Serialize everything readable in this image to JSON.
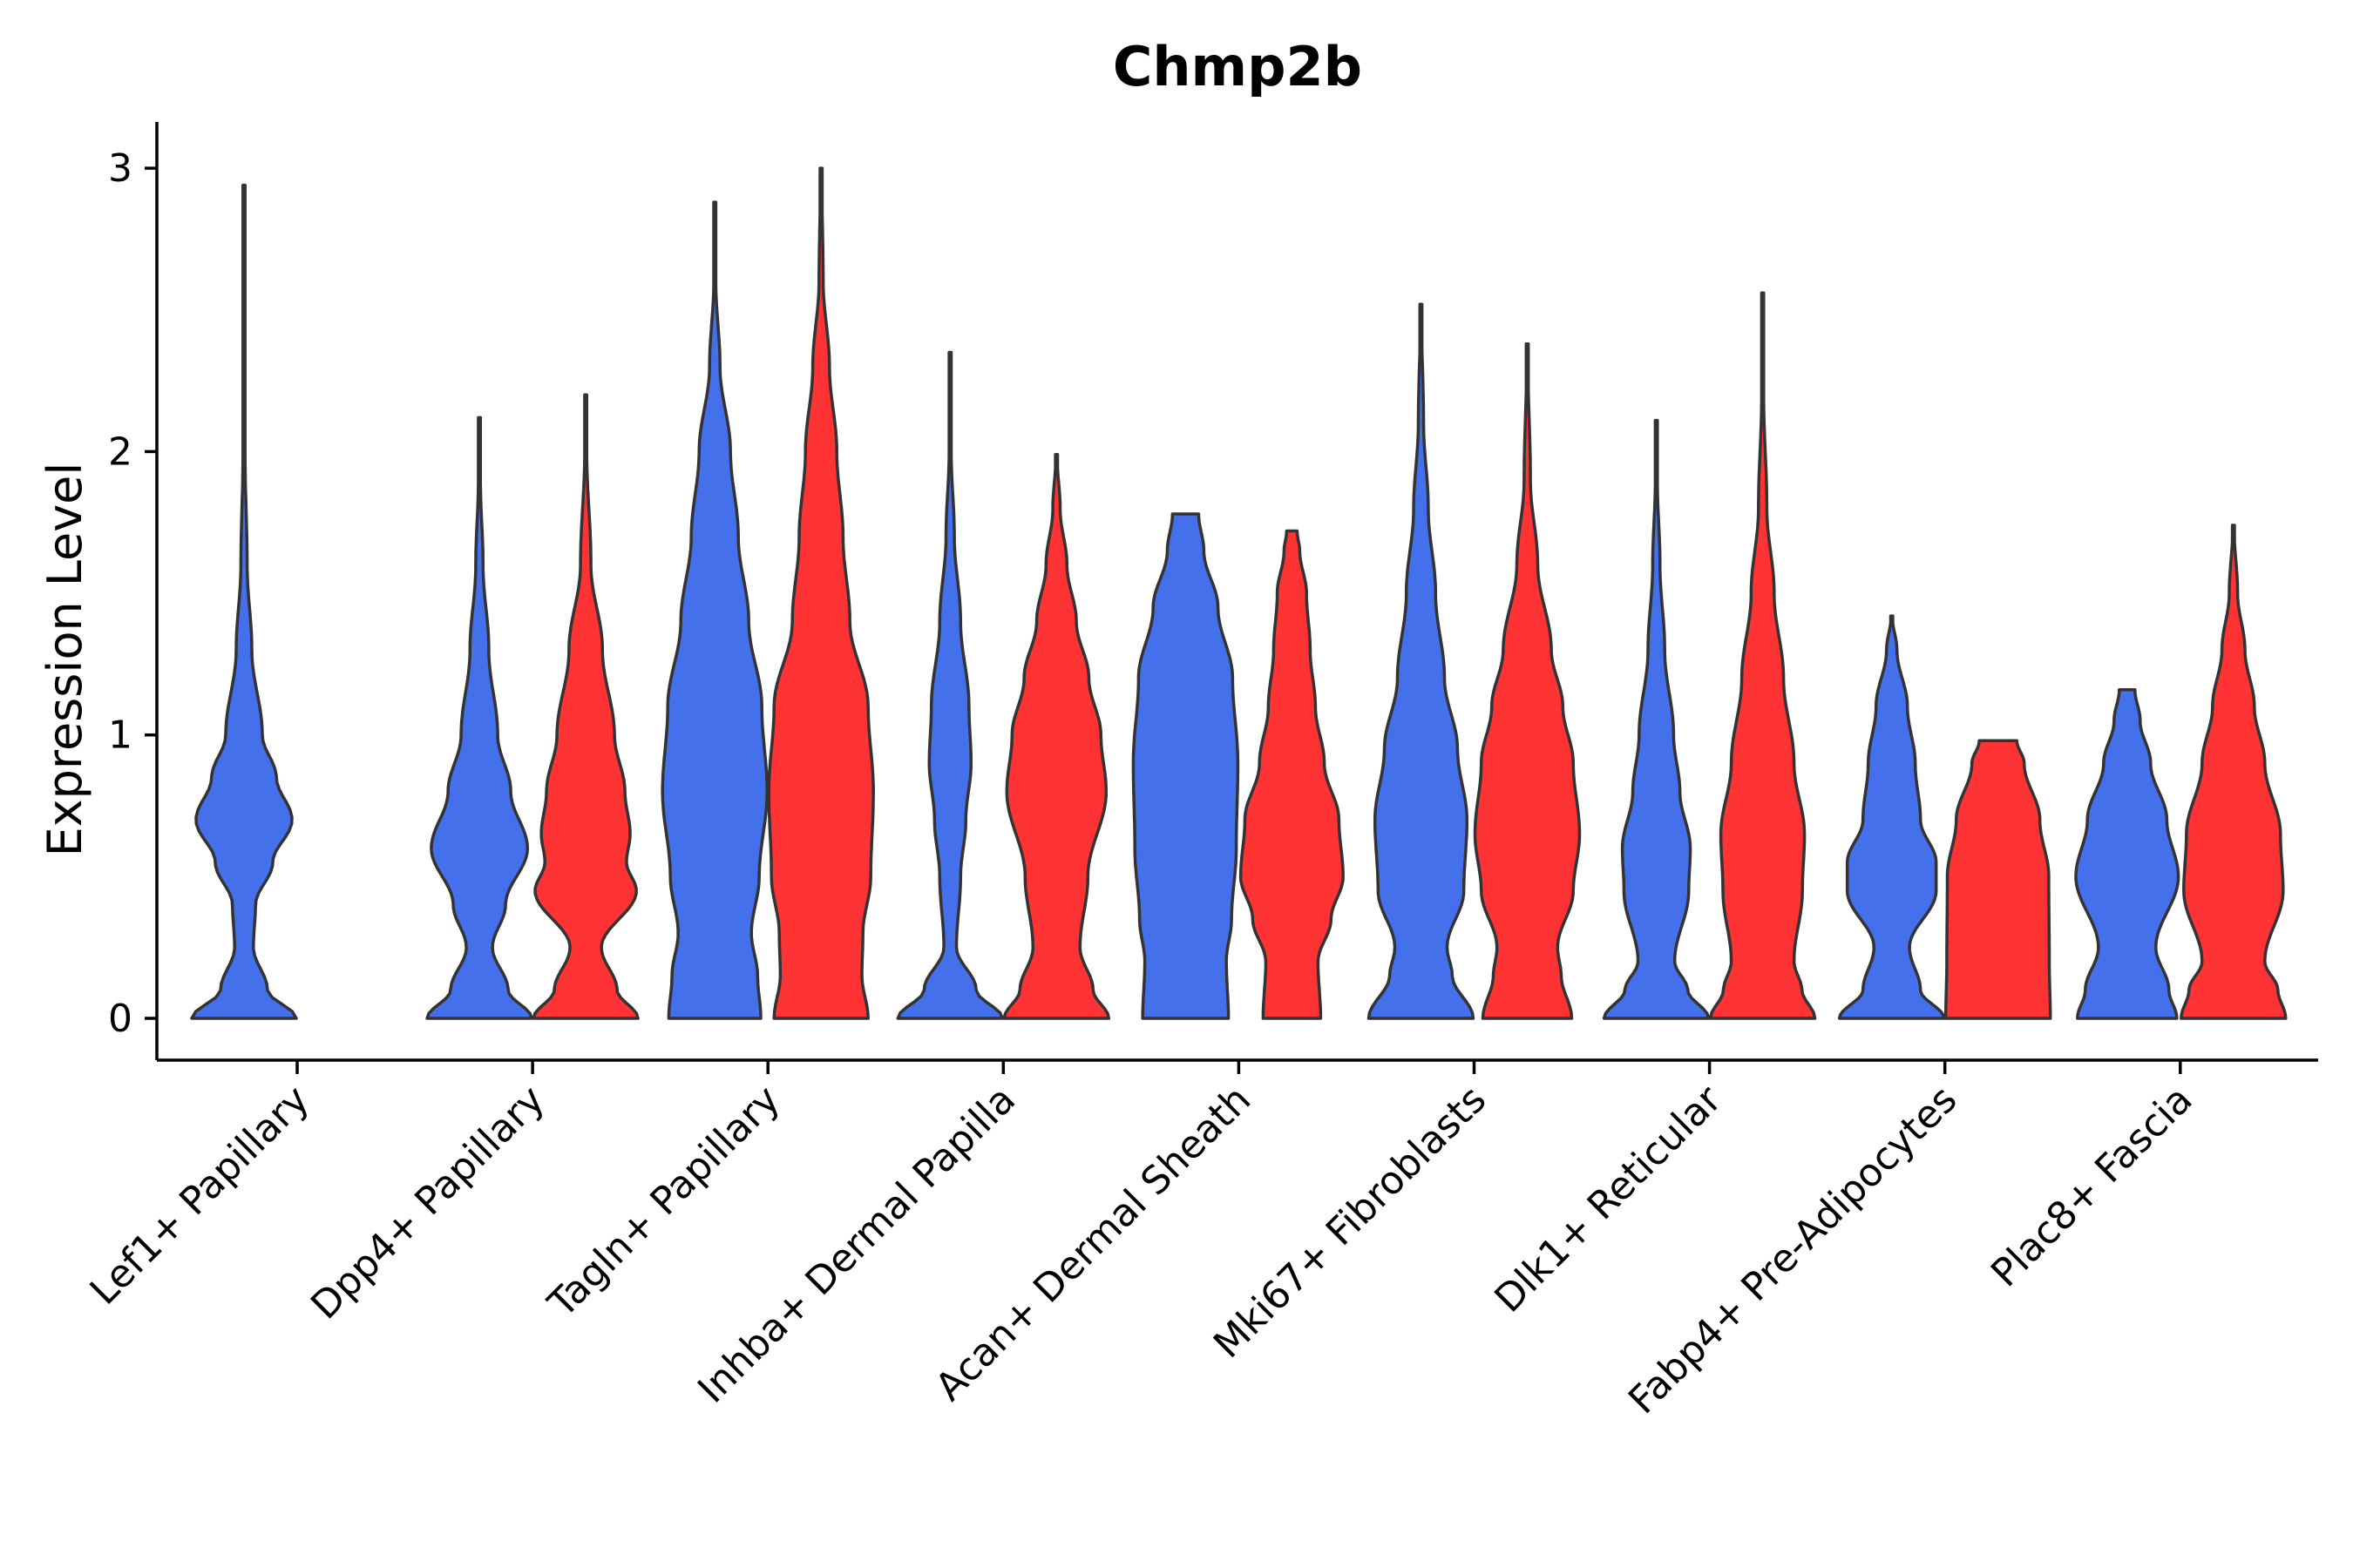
{
  "chart_data": {
    "type": "violin",
    "title": "Chmp2b",
    "xlabel": "",
    "ylabel": "Expression Level",
    "ylim": [
      -0.15,
      3.15
    ],
    "yticks": [
      0,
      1,
      2,
      3
    ],
    "colors": {
      "group1": "#4470EC",
      "group2": "#FF3333"
    },
    "categories": [
      "Lef1+ Papillary",
      "Dpp4+ Papillary",
      "Tagln+ Papillary",
      "Inhba+ Dermal Papilla",
      "Acan+ Dermal Sheath",
      "Mki67+ Fibroblasts",
      "Dlk1+ Reticular",
      "Fabp4+ Pre-Adipocytes",
      "Plac8+ Fascia"
    ],
    "violins": [
      {
        "category": 0,
        "group": "group1",
        "max": 2.94,
        "profile": [
          [
            0,
            1.0
          ],
          [
            0.1,
            0.45
          ],
          [
            0.25,
            0.18
          ],
          [
            0.4,
            0.22
          ],
          [
            0.55,
            0.55
          ],
          [
            0.7,
            0.92
          ],
          [
            0.85,
            0.62
          ],
          [
            1.0,
            0.35
          ],
          [
            1.3,
            0.15
          ],
          [
            1.6,
            0.06
          ],
          [
            2.0,
            0.02
          ],
          [
            2.5,
            0.01
          ],
          [
            2.94,
            0.004
          ]
        ]
      },
      {
        "category": 1,
        "group": "group1",
        "max": 2.12,
        "profile": [
          [
            0,
            1.0
          ],
          [
            0.1,
            0.55
          ],
          [
            0.25,
            0.25
          ],
          [
            0.4,
            0.5
          ],
          [
            0.6,
            0.92
          ],
          [
            0.8,
            0.6
          ],
          [
            1.0,
            0.35
          ],
          [
            1.3,
            0.18
          ],
          [
            1.6,
            0.07
          ],
          [
            1.9,
            0.02
          ],
          [
            2.12,
            0.005
          ]
        ]
      },
      {
        "category": 1,
        "group": "group2",
        "max": 2.2,
        "profile": [
          [
            0,
            1.0
          ],
          [
            0.1,
            0.6
          ],
          [
            0.25,
            0.3
          ],
          [
            0.45,
            0.97
          ],
          [
            0.55,
            0.78
          ],
          [
            0.65,
            0.85
          ],
          [
            0.8,
            0.75
          ],
          [
            1.0,
            0.55
          ],
          [
            1.3,
            0.32
          ],
          [
            1.6,
            0.1
          ],
          [
            2.0,
            0.02
          ],
          [
            2.2,
            0.006
          ]
        ]
      },
      {
        "category": 2,
        "group": "group1",
        "max": 2.88,
        "profile": [
          [
            0,
            0.88
          ],
          [
            0.15,
            0.82
          ],
          [
            0.3,
            0.7
          ],
          [
            0.5,
            0.85
          ],
          [
            0.8,
            1.0
          ],
          [
            1.1,
            0.9
          ],
          [
            1.4,
            0.65
          ],
          [
            1.7,
            0.45
          ],
          [
            2.0,
            0.3
          ],
          [
            2.3,
            0.1
          ],
          [
            2.6,
            0.02
          ],
          [
            2.88,
            0.008
          ]
        ]
      },
      {
        "category": 2,
        "group": "group2",
        "max": 3.0,
        "profile": [
          [
            0,
            0.9
          ],
          [
            0.15,
            0.78
          ],
          [
            0.3,
            0.8
          ],
          [
            0.5,
            0.95
          ],
          [
            0.8,
            1.0
          ],
          [
            1.1,
            0.9
          ],
          [
            1.4,
            0.55
          ],
          [
            1.7,
            0.42
          ],
          [
            2.0,
            0.3
          ],
          [
            2.3,
            0.16
          ],
          [
            2.6,
            0.04
          ],
          [
            3.0,
            0.01
          ]
        ]
      },
      {
        "category": 3,
        "group": "group1",
        "max": 2.35,
        "profile": [
          [
            0,
            1.0
          ],
          [
            0.1,
            0.5
          ],
          [
            0.25,
            0.12
          ],
          [
            0.5,
            0.2
          ],
          [
            0.7,
            0.3
          ],
          [
            0.9,
            0.4
          ],
          [
            1.1,
            0.36
          ],
          [
            1.4,
            0.2
          ],
          [
            1.7,
            0.08
          ],
          [
            2.0,
            0.02
          ],
          [
            2.35,
            0.004
          ]
        ]
      },
      {
        "category": 3,
        "group": "group2",
        "max": 1.99,
        "profile": [
          [
            0,
            1.0
          ],
          [
            0.1,
            0.7
          ],
          [
            0.25,
            0.45
          ],
          [
            0.5,
            0.6
          ],
          [
            0.8,
            0.95
          ],
          [
            1.0,
            0.85
          ],
          [
            1.2,
            0.62
          ],
          [
            1.4,
            0.38
          ],
          [
            1.6,
            0.2
          ],
          [
            1.8,
            0.07
          ],
          [
            1.99,
            0.01
          ]
        ]
      },
      {
        "category": 4,
        "group": "group1",
        "max": 1.78,
        "profile": [
          [
            0,
            0.82
          ],
          [
            0.2,
            0.78
          ],
          [
            0.35,
            0.88
          ],
          [
            0.6,
            0.97
          ],
          [
            0.9,
            1.0
          ],
          [
            1.2,
            0.9
          ],
          [
            1.45,
            0.62
          ],
          [
            1.65,
            0.35
          ],
          [
            1.78,
            0.25
          ]
        ]
      },
      {
        "category": 4,
        "group": "group2",
        "max": 1.72,
        "profile": [
          [
            0,
            0.55
          ],
          [
            0.2,
            0.5
          ],
          [
            0.35,
            0.75
          ],
          [
            0.5,
            0.98
          ],
          [
            0.7,
            0.9
          ],
          [
            0.9,
            0.62
          ],
          [
            1.1,
            0.45
          ],
          [
            1.3,
            0.35
          ],
          [
            1.5,
            0.28
          ],
          [
            1.65,
            0.15
          ],
          [
            1.72,
            0.1
          ]
        ]
      },
      {
        "category": 5,
        "group": "group1",
        "max": 2.52,
        "profile": [
          [
            0,
            1.0
          ],
          [
            0.15,
            0.6
          ],
          [
            0.25,
            0.5
          ],
          [
            0.45,
            0.82
          ],
          [
            0.7,
            0.88
          ],
          [
            0.95,
            0.7
          ],
          [
            1.2,
            0.45
          ],
          [
            1.5,
            0.28
          ],
          [
            1.8,
            0.14
          ],
          [
            2.1,
            0.05
          ],
          [
            2.52,
            0.005
          ]
        ]
      },
      {
        "category": 5,
        "group": "group2",
        "max": 2.38,
        "profile": [
          [
            0,
            0.85
          ],
          [
            0.15,
            0.65
          ],
          [
            0.25,
            0.58
          ],
          [
            0.45,
            0.88
          ],
          [
            0.65,
            1.0
          ],
          [
            0.9,
            0.88
          ],
          [
            1.1,
            0.68
          ],
          [
            1.3,
            0.46
          ],
          [
            1.6,
            0.2
          ],
          [
            1.9,
            0.06
          ],
          [
            2.38,
            0.004
          ]
        ]
      },
      {
        "category": 6,
        "group": "group1",
        "max": 2.11,
        "profile": [
          [
            0,
            1.0
          ],
          [
            0.1,
            0.6
          ],
          [
            0.2,
            0.35
          ],
          [
            0.45,
            0.62
          ],
          [
            0.6,
            0.65
          ],
          [
            0.8,
            0.45
          ],
          [
            1.0,
            0.33
          ],
          [
            1.3,
            0.16
          ],
          [
            1.6,
            0.07
          ],
          [
            1.9,
            0.02
          ],
          [
            2.11,
            0.004
          ]
        ]
      },
      {
        "category": 6,
        "group": "group2",
        "max": 2.56,
        "profile": [
          [
            0,
            1.0
          ],
          [
            0.1,
            0.75
          ],
          [
            0.2,
            0.6
          ],
          [
            0.45,
            0.76
          ],
          [
            0.65,
            0.8
          ],
          [
            0.9,
            0.6
          ],
          [
            1.2,
            0.4
          ],
          [
            1.5,
            0.22
          ],
          [
            1.8,
            0.08
          ],
          [
            2.2,
            0.02
          ],
          [
            2.56,
            0.004
          ]
        ]
      },
      {
        "category": 7,
        "group": "group1",
        "max": 1.42,
        "profile": [
          [
            0,
            1.0
          ],
          [
            0.1,
            0.55
          ],
          [
            0.25,
            0.34
          ],
          [
            0.45,
            0.85
          ],
          [
            0.55,
            0.85
          ],
          [
            0.7,
            0.55
          ],
          [
            0.9,
            0.45
          ],
          [
            1.1,
            0.3
          ],
          [
            1.3,
            0.1
          ],
          [
            1.42,
            0.01
          ]
        ]
      },
      {
        "category": 7,
        "group": "group2",
        "max": 0.98,
        "profile": [
          [
            0,
            1.0
          ],
          [
            0.2,
            0.98
          ],
          [
            0.5,
            0.97
          ],
          [
            0.7,
            0.8
          ],
          [
            0.9,
            0.5
          ],
          [
            0.98,
            0.36
          ]
        ]
      },
      {
        "category": 8,
        "group": "group1",
        "max": 1.16,
        "profile": [
          [
            0,
            0.95
          ],
          [
            0.1,
            0.8
          ],
          [
            0.25,
            0.55
          ],
          [
            0.5,
            0.98
          ],
          [
            0.7,
            0.76
          ],
          [
            0.9,
            0.45
          ],
          [
            1.05,
            0.25
          ],
          [
            1.16,
            0.15
          ]
        ]
      },
      {
        "category": 8,
        "group": "group2",
        "max": 1.74,
        "profile": [
          [
            0,
            1.0
          ],
          [
            0.1,
            0.85
          ],
          [
            0.2,
            0.6
          ],
          [
            0.45,
            0.95
          ],
          [
            0.65,
            0.9
          ],
          [
            0.9,
            0.6
          ],
          [
            1.1,
            0.4
          ],
          [
            1.3,
            0.22
          ],
          [
            1.5,
            0.08
          ],
          [
            1.74,
            0.01
          ]
        ]
      }
    ]
  }
}
